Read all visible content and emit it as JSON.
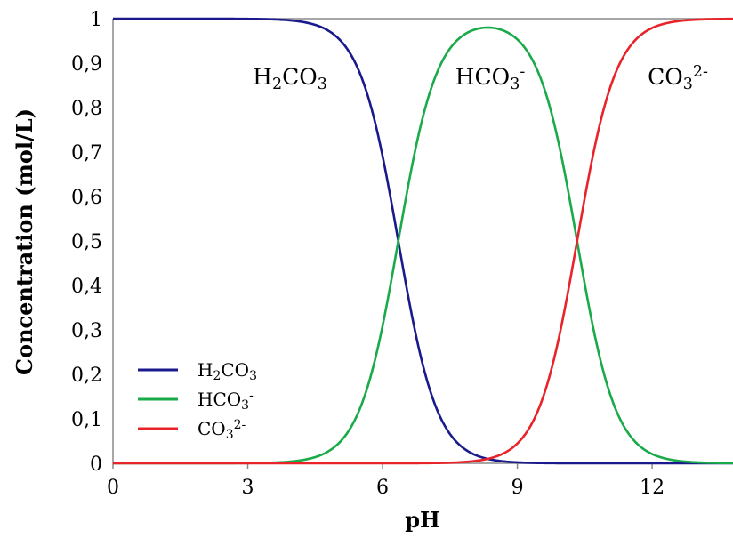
{
  "chart_data": {
    "type": "line",
    "xlabel": "pH",
    "ylabel": "Concentration (mol/L)",
    "xlim": [
      0,
      13.8
    ],
    "ylim": [
      0,
      1
    ],
    "x_ticks": [
      "0",
      "3",
      "6",
      "9",
      "12"
    ],
    "x_tick_values": [
      0,
      3,
      6,
      9,
      12
    ],
    "y_ticks": [
      "0",
      "0,1",
      "0,2",
      "0,3",
      "0,4",
      "0,5",
      "0,6",
      "0,7",
      "0,8",
      "0,9",
      "1"
    ],
    "y_tick_values": [
      0,
      0.1,
      0.2,
      0.3,
      0.4,
      0.5,
      0.6,
      0.7,
      0.8,
      0.9,
      1
    ],
    "grid": false,
    "legend_position": "bottom-left",
    "pKa1": 6.35,
    "pKa2": 10.33,
    "series": [
      {
        "id": "h2co3",
        "name": "H2CO3",
        "label": {
          "base": "H",
          "sub": "2",
          "rest": "CO",
          "sub2": "3",
          "sup": ""
        },
        "color": "#1a1a8c",
        "x": [
          0,
          3,
          4,
          4.5,
          5,
          5.5,
          6,
          6.35,
          6.5,
          7,
          7.5,
          8,
          8.5,
          9,
          9.5,
          10,
          11,
          12,
          13.8
        ],
        "values": [
          1,
          1,
          0.996,
          0.986,
          0.957,
          0.876,
          0.691,
          0.5,
          0.415,
          0.183,
          0.066,
          0.022,
          0.007,
          0.002,
          0.001,
          0,
          0,
          0,
          0
        ]
      },
      {
        "id": "hco3",
        "name": "HCO3-",
        "label": {
          "base": "HCO",
          "sub": "3",
          "rest": "",
          "sub2": "",
          "sup": "-"
        },
        "color": "#1aaa4a",
        "x": [
          0,
          3,
          4,
          4.5,
          5,
          5.5,
          6,
          6.35,
          6.5,
          7,
          7.5,
          8,
          8.35,
          8.5,
          9,
          9.5,
          10,
          10.33,
          10.5,
          11,
          11.5,
          12,
          12.5,
          13,
          13.8
        ],
        "values": [
          0,
          0,
          0.004,
          0.014,
          0.043,
          0.124,
          0.309,
          0.5,
          0.584,
          0.815,
          0.929,
          0.957,
          0.98,
          0.972,
          0.953,
          0.87,
          0.681,
          0.5,
          0.403,
          0.176,
          0.063,
          0.021,
          0.007,
          0.002,
          0
        ]
      },
      {
        "id": "co32",
        "name": "CO32-",
        "label": {
          "base": "CO",
          "sub": "3",
          "rest": "",
          "sub2": "",
          "sup": "2-"
        },
        "color": "#e8242a",
        "x": [
          0,
          6,
          7,
          7.5,
          8,
          8.5,
          9,
          9.5,
          10,
          10.33,
          10.5,
          11,
          11.5,
          12,
          12.5,
          13,
          13.8
        ],
        "values": [
          0,
          0,
          0.001,
          0.003,
          0.008,
          0.021,
          0.045,
          0.129,
          0.319,
          0.5,
          0.597,
          0.824,
          0.937,
          0.979,
          0.993,
          0.998,
          1
        ]
      }
    ]
  }
}
